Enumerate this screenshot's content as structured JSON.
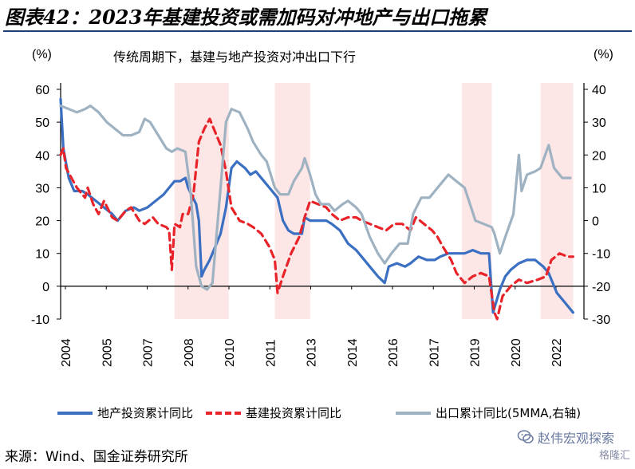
{
  "header": {
    "title": "图表42：2023年基建投资或需加码对冲地产与出口拖累",
    "subtitle": "传统周期下，基建与地产投资对冲出口下行",
    "left_unit": "(%)",
    "right_unit": "(%)"
  },
  "chart_data": {
    "type": "line",
    "title": "传统周期下，基建与地产投资对冲出口下行",
    "x_tick_labels": [
      "2004",
      "2005",
      "2007",
      "2008",
      "2010",
      "2011",
      "2013",
      "2014",
      "2016",
      "2017",
      "2019",
      "2020",
      "2022"
    ],
    "x_range": [
      2004.0,
      2023.3
    ],
    "y_left": {
      "label": "(%)",
      "range": [
        -10,
        60
      ],
      "ticks": [
        -10,
        0,
        10,
        20,
        30,
        40,
        50,
        60
      ]
    },
    "y_right": {
      "label": "(%)",
      "range": [
        -30,
        40
      ],
      "ticks": [
        -30,
        -20,
        -10,
        0,
        10,
        20,
        30,
        40
      ]
    },
    "shaded_periods": [
      [
        2008.2,
        2010.2
      ],
      [
        2011.9,
        2013.2
      ],
      [
        2018.8,
        2019.9
      ],
      [
        2021.7,
        2022.9
      ]
    ],
    "series": [
      {
        "name": "地产投资累计同比",
        "axis": "left",
        "color": "#3a6fc2",
        "style": "solid",
        "points": [
          [
            2004.0,
            57
          ],
          [
            2004.1,
            42
          ],
          [
            2004.3,
            33
          ],
          [
            2004.5,
            29
          ],
          [
            2004.8,
            29
          ],
          [
            2005.0,
            28
          ],
          [
            2005.3,
            26
          ],
          [
            2005.6,
            24
          ],
          [
            2005.9,
            22
          ],
          [
            2006.1,
            20
          ],
          [
            2006.4,
            23
          ],
          [
            2006.7,
            24
          ],
          [
            2006.9,
            23
          ],
          [
            2007.2,
            24
          ],
          [
            2007.5,
            26
          ],
          [
            2007.8,
            28
          ],
          [
            2008.0,
            30
          ],
          [
            2008.2,
            32
          ],
          [
            2008.4,
            32
          ],
          [
            2008.6,
            33
          ],
          [
            2008.7,
            30
          ],
          [
            2009.0,
            25
          ],
          [
            2009.1,
            20
          ],
          [
            2009.2,
            3
          ],
          [
            2009.3,
            5
          ],
          [
            2009.5,
            8
          ],
          [
            2009.7,
            12
          ],
          [
            2009.9,
            16
          ],
          [
            2010.0,
            20
          ],
          [
            2010.1,
            24
          ],
          [
            2010.3,
            36
          ],
          [
            2010.5,
            38
          ],
          [
            2010.8,
            36
          ],
          [
            2011.0,
            34
          ],
          [
            2011.2,
            35
          ],
          [
            2011.5,
            32
          ],
          [
            2011.8,
            29
          ],
          [
            2012.0,
            27
          ],
          [
            2012.2,
            20
          ],
          [
            2012.4,
            17
          ],
          [
            2012.6,
            16
          ],
          [
            2012.9,
            16
          ],
          [
            2013.0,
            21
          ],
          [
            2013.2,
            20
          ],
          [
            2013.5,
            20
          ],
          [
            2013.8,
            20
          ],
          [
            2014.0,
            19
          ],
          [
            2014.3,
            17
          ],
          [
            2014.6,
            13
          ],
          [
            2014.9,
            11
          ],
          [
            2015.1,
            9
          ],
          [
            2015.4,
            6
          ],
          [
            2015.7,
            3
          ],
          [
            2015.95,
            1
          ],
          [
            2016.1,
            6
          ],
          [
            2016.4,
            7
          ],
          [
            2016.7,
            6
          ],
          [
            2016.9,
            7
          ],
          [
            2017.2,
            9
          ],
          [
            2017.5,
            8
          ],
          [
            2017.8,
            8
          ],
          [
            2018.0,
            9
          ],
          [
            2018.3,
            10
          ],
          [
            2018.6,
            10
          ],
          [
            2018.9,
            10
          ],
          [
            2019.2,
            11
          ],
          [
            2019.5,
            10
          ],
          [
            2019.8,
            10
          ],
          [
            2019.95,
            -8
          ],
          [
            2020.2,
            -1
          ],
          [
            2020.4,
            3
          ],
          [
            2020.6,
            5
          ],
          [
            2020.9,
            7
          ],
          [
            2021.2,
            8
          ],
          [
            2021.5,
            8
          ],
          [
            2021.8,
            6
          ],
          [
            2022.0,
            4
          ],
          [
            2022.3,
            -2
          ],
          [
            2022.6,
            -5
          ],
          [
            2022.9,
            -8
          ]
        ]
      },
      {
        "name": "基建投资累计同比",
        "axis": "left",
        "color": "#e8242a",
        "style": "dashed",
        "points": [
          [
            2004.0,
            40
          ],
          [
            2004.1,
            42
          ],
          [
            2004.2,
            36
          ],
          [
            2004.4,
            33
          ],
          [
            2004.6,
            30
          ],
          [
            2004.9,
            27
          ],
          [
            2005.0,
            30
          ],
          [
            2005.2,
            25
          ],
          [
            2005.4,
            22
          ],
          [
            2005.6,
            26
          ],
          [
            2005.9,
            21
          ],
          [
            2006.1,
            20
          ],
          [
            2006.4,
            23
          ],
          [
            2006.6,
            24
          ],
          [
            2006.9,
            20
          ],
          [
            2007.1,
            19
          ],
          [
            2007.4,
            21
          ],
          [
            2007.6,
            19
          ],
          [
            2007.9,
            18
          ],
          [
            2008.0,
            17
          ],
          [
            2008.1,
            5
          ],
          [
            2008.2,
            19
          ],
          [
            2008.4,
            18
          ],
          [
            2008.5,
            22
          ],
          [
            2008.7,
            22
          ],
          [
            2008.9,
            28
          ],
          [
            2009.1,
            44
          ],
          [
            2009.3,
            48
          ],
          [
            2009.5,
            51
          ],
          [
            2009.7,
            47
          ],
          [
            2009.9,
            43
          ],
          [
            2010.1,
            35
          ],
          [
            2010.3,
            24
          ],
          [
            2010.6,
            20
          ],
          [
            2010.9,
            19
          ],
          [
            2011.1,
            18
          ],
          [
            2011.4,
            16
          ],
          [
            2011.7,
            12
          ],
          [
            2011.9,
            8
          ],
          [
            2012.0,
            -2
          ],
          [
            2012.2,
            3
          ],
          [
            2012.5,
            10
          ],
          [
            2012.8,
            15
          ],
          [
            2013.0,
            21
          ],
          [
            2013.2,
            26
          ],
          [
            2013.5,
            25
          ],
          [
            2013.8,
            24
          ],
          [
            2014.0,
            22
          ],
          [
            2014.3,
            20
          ],
          [
            2014.6,
            21
          ],
          [
            2014.9,
            21
          ],
          [
            2015.1,
            20
          ],
          [
            2015.4,
            19
          ],
          [
            2015.7,
            18
          ],
          [
            2016.0,
            17
          ],
          [
            2016.3,
            19
          ],
          [
            2016.6,
            19
          ],
          [
            2016.9,
            17
          ],
          [
            2017.1,
            21
          ],
          [
            2017.4,
            19
          ],
          [
            2017.7,
            17
          ],
          [
            2017.9,
            15
          ],
          [
            2018.1,
            12
          ],
          [
            2018.4,
            8
          ],
          [
            2018.6,
            4
          ],
          [
            2018.9,
            1
          ],
          [
            2019.2,
            3
          ],
          [
            2019.5,
            4
          ],
          [
            2019.8,
            3
          ],
          [
            2020.0,
            -8
          ],
          [
            2020.1,
            -10
          ],
          [
            2020.3,
            -3
          ],
          [
            2020.6,
            0
          ],
          [
            2020.9,
            2
          ],
          [
            2021.2,
            1
          ],
          [
            2021.6,
            2
          ],
          [
            2021.9,
            3
          ],
          [
            2022.1,
            8
          ],
          [
            2022.4,
            10
          ],
          [
            2022.7,
            9
          ],
          [
            2022.9,
            9
          ]
        ]
      },
      {
        "name": "出口累计同比(5MMA,右轴)",
        "axis": "right",
        "color": "#9fb2c2",
        "style": "solid",
        "points": [
          [
            2004.0,
            35
          ],
          [
            2004.3,
            34
          ],
          [
            2004.6,
            33
          ],
          [
            2004.9,
            34
          ],
          [
            2005.1,
            35
          ],
          [
            2005.4,
            33
          ],
          [
            2005.7,
            30
          ],
          [
            2006.0,
            28
          ],
          [
            2006.3,
            26
          ],
          [
            2006.6,
            26
          ],
          [
            2006.9,
            27
          ],
          [
            2007.1,
            31
          ],
          [
            2007.3,
            30
          ],
          [
            2007.6,
            26
          ],
          [
            2007.9,
            22
          ],
          [
            2008.1,
            21
          ],
          [
            2008.3,
            22
          ],
          [
            2008.6,
            21
          ],
          [
            2008.8,
            8
          ],
          [
            2009.0,
            -14
          ],
          [
            2009.2,
            -20
          ],
          [
            2009.4,
            -21
          ],
          [
            2009.6,
            -19
          ],
          [
            2009.9,
            10
          ],
          [
            2010.1,
            30
          ],
          [
            2010.3,
            34
          ],
          [
            2010.6,
            33
          ],
          [
            2010.9,
            28
          ],
          [
            2011.1,
            24
          ],
          [
            2011.4,
            20
          ],
          [
            2011.6,
            18
          ],
          [
            2011.9,
            10
          ],
          [
            2012.1,
            8
          ],
          [
            2012.4,
            8
          ],
          [
            2012.6,
            12
          ],
          [
            2012.9,
            16
          ],
          [
            2013.0,
            19
          ],
          [
            2013.2,
            14
          ],
          [
            2013.4,
            8
          ],
          [
            2013.6,
            5
          ],
          [
            2013.9,
            5
          ],
          [
            2014.1,
            3
          ],
          [
            2014.4,
            5
          ],
          [
            2014.6,
            6
          ],
          [
            2014.9,
            4
          ],
          [
            2015.1,
            2
          ],
          [
            2015.4,
            -5
          ],
          [
            2015.7,
            -10
          ],
          [
            2015.95,
            -13
          ],
          [
            2016.2,
            -10
          ],
          [
            2016.5,
            -7
          ],
          [
            2016.8,
            -7
          ],
          [
            2017.0,
            2
          ],
          [
            2017.3,
            7
          ],
          [
            2017.6,
            7
          ],
          [
            2017.9,
            10
          ],
          [
            2018.1,
            12
          ],
          [
            2018.3,
            14
          ],
          [
            2018.6,
            12
          ],
          [
            2018.9,
            10
          ],
          [
            2019.1,
            5
          ],
          [
            2019.3,
            0
          ],
          [
            2019.6,
            -1
          ],
          [
            2019.9,
            -2
          ],
          [
            2020.0,
            -4
          ],
          [
            2020.2,
            -10
          ],
          [
            2020.4,
            -5
          ],
          [
            2020.7,
            2
          ],
          [
            2020.9,
            20
          ],
          [
            2021.0,
            9
          ],
          [
            2021.2,
            14
          ],
          [
            2021.5,
            15
          ],
          [
            2021.7,
            16
          ],
          [
            2022.0,
            23
          ],
          [
            2022.2,
            16
          ],
          [
            2022.5,
            13
          ],
          [
            2022.8,
            13
          ]
        ]
      }
    ]
  },
  "legend": {
    "items": [
      {
        "label": "地产投资累计同比",
        "color": "#3a6fc2",
        "style": "solid"
      },
      {
        "label": "基建投资累计同比",
        "color": "#e8242a",
        "style": "dashed"
      },
      {
        "label": "出口累计同比(5MMA,右轴)",
        "color": "#9fb2c2",
        "style": "solid"
      }
    ]
  },
  "footnote": "来源：Wind、国金证券研究所",
  "watermark": {
    "text": "赵伟宏观探索",
    "logo": "格隆汇",
    "icon": "wechat-icon"
  }
}
